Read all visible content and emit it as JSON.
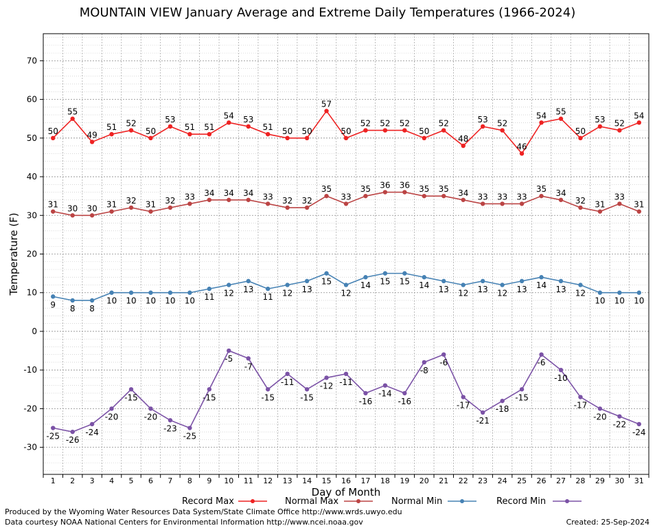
{
  "chart_data": {
    "type": "line",
    "title": "MOUNTAIN VIEW January Average and Extreme Daily Temperatures (1966-2024)",
    "xlabel": "Day of Month",
    "ylabel": "Temperature (F)",
    "ylim": [
      -37,
      77
    ],
    "yticks": [
      -30,
      -20,
      -10,
      0,
      10,
      20,
      30,
      40,
      50,
      60,
      70
    ],
    "x": [
      1,
      2,
      3,
      4,
      5,
      6,
      7,
      8,
      9,
      10,
      11,
      12,
      13,
      14,
      15,
      16,
      17,
      18,
      19,
      20,
      21,
      22,
      23,
      24,
      25,
      26,
      27,
      28,
      29,
      30,
      31
    ],
    "grid": true,
    "legend_position": "bottom",
    "series": [
      {
        "name": "Record Max",
        "color": "#ee2222",
        "values": [
          50,
          55,
          49,
          51,
          52,
          50,
          53,
          51,
          51,
          54,
          53,
          51,
          50,
          50,
          57,
          50,
          52,
          52,
          52,
          50,
          52,
          48,
          53,
          52,
          46,
          54,
          55,
          50,
          53,
          52,
          54
        ]
      },
      {
        "name": "Normal Max",
        "color": "#bb4444",
        "values": [
          31,
          30,
          30,
          31,
          32,
          31,
          32,
          33,
          34,
          34,
          34,
          33,
          32,
          32,
          35,
          33,
          35,
          36,
          36,
          35,
          35,
          34,
          33,
          33,
          33,
          35,
          34,
          32,
          31,
          33,
          31
        ]
      },
      {
        "name": "Normal Min",
        "color": "#4682b4",
        "values": [
          9,
          8,
          8,
          10,
          10,
          10,
          10,
          10,
          11,
          12,
          13,
          11,
          12,
          13,
          15,
          12,
          14,
          15,
          15,
          14,
          13,
          12,
          13,
          12,
          13,
          14,
          13,
          12,
          10,
          10,
          10
        ]
      },
      {
        "name": "Record Min",
        "color": "#7b52a6",
        "values": [
          -25,
          -26,
          -24,
          -20,
          -15,
          -20,
          -23,
          -25,
          -15,
          -5,
          -7,
          -15,
          -11,
          -15,
          -12,
          -11,
          -16,
          -14,
          -16,
          -8,
          -6,
          -17,
          -21,
          -18,
          -15,
          -6,
          -10,
          -17,
          -20,
          -22,
          -24
        ]
      }
    ]
  },
  "footer": {
    "credit_line1": "Produced by the Wyoming Water Resources Data System/State Climate Office http://www.wrds.uwyo.edu",
    "credit_line2": "Data courtesy NOAA National Centers for Environmental Information http://www.ncei.noaa.gov",
    "created": "Created:  25-Sep-2024"
  }
}
